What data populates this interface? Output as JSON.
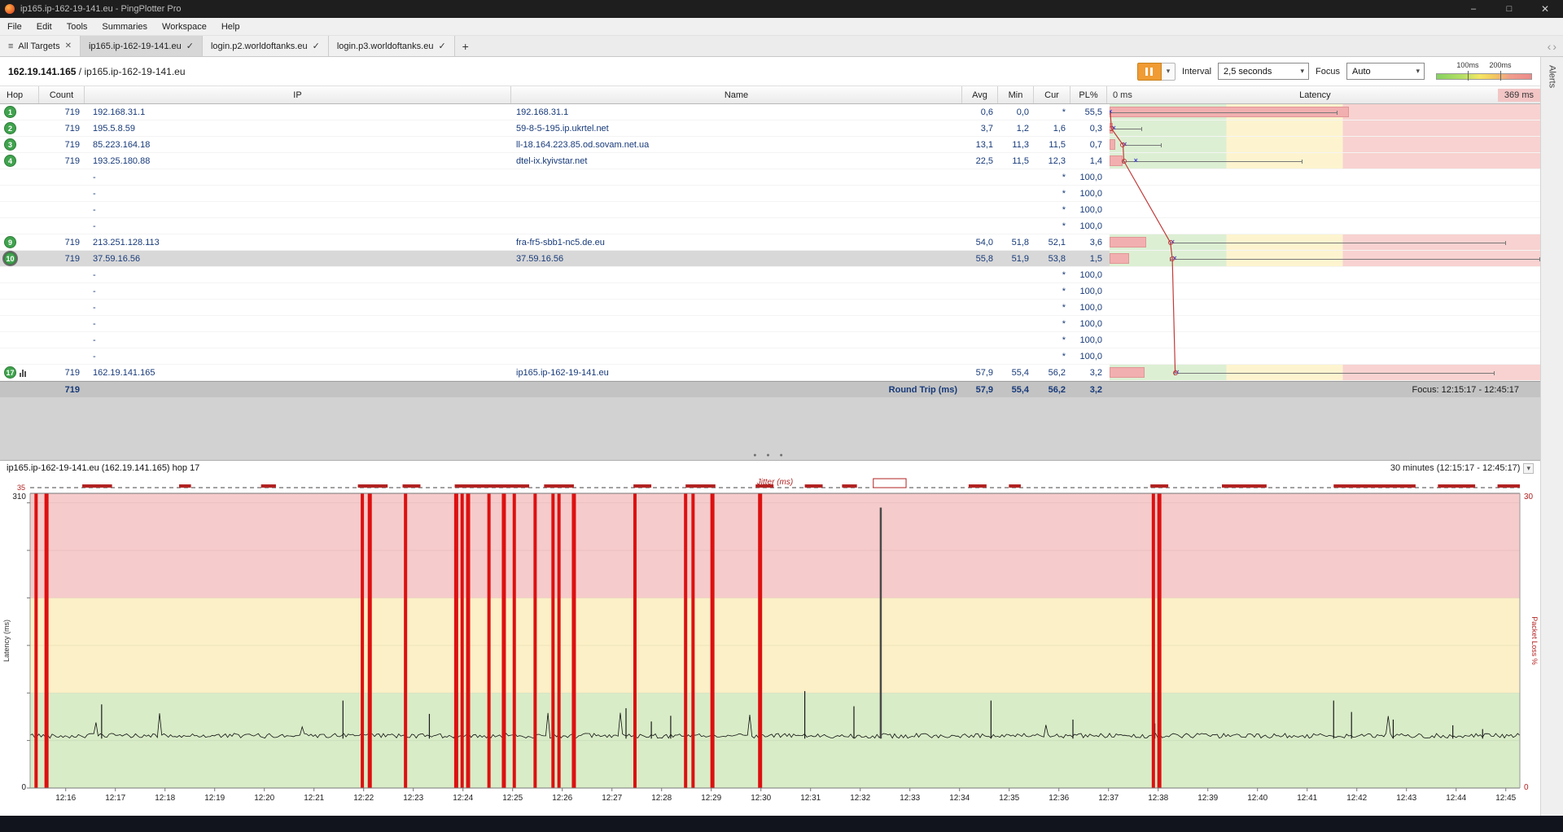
{
  "window": {
    "title": "ip165.ip-162-19-141.eu - PingPlotter Pro"
  },
  "icons": {
    "hamburger": "≡",
    "check": "✓",
    "close": "✕",
    "minimize": "–",
    "maximize": "□",
    "chevron_down": "▾",
    "chevron_left": "‹",
    "chevron_right": "›",
    "plus": "+",
    "dots": "● ● ●",
    "avg_marker": "×"
  },
  "colors": {
    "titlebar_bg": "#1e1e1e",
    "accent_orange": "#f09b33",
    "hop_badge_green": "#3fa34d",
    "text_navy": "#173a7a",
    "zone_green": "#dcefd3",
    "zone_yellow": "#fdf4cf",
    "zone_red": "#f8d2d0",
    "plot_green": "#d8ecc7",
    "plot_yellow": "#fbf0c7",
    "plot_red": "#f6cbcb",
    "packet_loss_red": "#dd1010",
    "hop_line_red": "#c23a3a",
    "avg_marker_blue": "#4646c8",
    "selected_row": "#d8d8d8",
    "footer_bg": "#c3c3c3",
    "taskbar": "#11131d"
  },
  "menu": {
    "items": [
      "File",
      "Edit",
      "Tools",
      "Summaries",
      "Workspace",
      "Help"
    ]
  },
  "tabs": {
    "items": [
      {
        "label": "All Targets",
        "icon": "menu",
        "close": true,
        "active": false
      },
      {
        "label": "ip165.ip-162-19-141.eu",
        "icon": "check",
        "close": false,
        "active": true
      },
      {
        "label": "login.p2.worldoftanks.eu",
        "icon": "check",
        "close": false,
        "active": false
      },
      {
        "label": "login.p3.worldoftanks.eu",
        "icon": "check",
        "close": false,
        "active": false
      }
    ]
  },
  "target_header": {
    "address": "162.19.141.165",
    "separator": " / ",
    "hostname": "ip165.ip-162-19-141.eu",
    "interval_label": "Interval",
    "interval_value": "2,5 seconds",
    "focus_label": "Focus",
    "focus_value": "Auto",
    "legend": {
      "low": "100ms",
      "high": "200ms"
    }
  },
  "sidebar": {
    "alerts_label": "Alerts"
  },
  "table": {
    "columns": [
      "Hop",
      "Count",
      "IP",
      "Name",
      "Avg",
      "Min",
      "Cur",
      "PL%"
    ],
    "latency_header": {
      "left": "0 ms",
      "title": "Latency",
      "right": "369 ms"
    },
    "scale_max_ms": 369,
    "zone_thresholds_ms": [
      100,
      200
    ],
    "rows": [
      {
        "hop": "1",
        "count": "719",
        "ip": "192.168.31.1",
        "name": "192.168.31.1",
        "avg": "0,6",
        "min": "0,0",
        "cur": "*",
        "pl": "55,5",
        "selected": false,
        "chart_icon": false,
        "g": {
          "min": 0,
          "avg": 0.6,
          "cur": null,
          "max": 195,
          "plw": 0.555
        }
      },
      {
        "hop": "2",
        "count": "719",
        "ip": "195.5.8.59",
        "name": "59-8-5-195.ip.ukrtel.net",
        "avg": "3,7",
        "min": "1,2",
        "cur": "1,6",
        "pl": "0,3",
        "selected": false,
        "chart_icon": false,
        "g": {
          "min": 1.2,
          "avg": 3.7,
          "cur": 1.6,
          "max": 28,
          "plw": 0.008
        }
      },
      {
        "hop": "3",
        "count": "719",
        "ip": "85.223.164.18",
        "name": "ll-18.164.223.85.od.sovam.net.ua",
        "avg": "13,1",
        "min": "11,3",
        "cur": "11,5",
        "pl": "0,7",
        "selected": false,
        "chart_icon": false,
        "g": {
          "min": 11.3,
          "avg": 13.1,
          "cur": 11.5,
          "max": 45,
          "plw": 0.014
        }
      },
      {
        "hop": "4",
        "count": "719",
        "ip": "193.25.180.88",
        "name": "dtel-ix.kyivstar.net",
        "avg": "22,5",
        "min": "11,5",
        "cur": "12,3",
        "pl": "1,4",
        "selected": false,
        "chart_icon": false,
        "g": {
          "min": 11.5,
          "avg": 22.5,
          "cur": 12.3,
          "max": 165,
          "plw": 0.03
        }
      },
      {
        "hop": "",
        "count": "",
        "ip": "-",
        "name": "",
        "avg": "",
        "min": "",
        "cur": "*",
        "pl": "100,0",
        "selected": false,
        "chart_icon": false,
        "g": null
      },
      {
        "hop": "",
        "count": "",
        "ip": "-",
        "name": "",
        "avg": "",
        "min": "",
        "cur": "*",
        "pl": "100,0",
        "selected": false,
        "chart_icon": false,
        "g": null
      },
      {
        "hop": "",
        "count": "",
        "ip": "-",
        "name": "",
        "avg": "",
        "min": "",
        "cur": "*",
        "pl": "100,0",
        "selected": false,
        "chart_icon": false,
        "g": null
      },
      {
        "hop": "",
        "count": "",
        "ip": "-",
        "name": "",
        "avg": "",
        "min": "",
        "cur": "*",
        "pl": "100,0",
        "selected": false,
        "chart_icon": false,
        "g": null
      },
      {
        "hop": "9",
        "count": "719",
        "ip": "213.251.128.113",
        "name": "fra-fr5-sbb1-nc5.de.eu",
        "avg": "54,0",
        "min": "51,8",
        "cur": "52,1",
        "pl": "3,6",
        "selected": false,
        "chart_icon": false,
        "g": {
          "min": 51.8,
          "avg": 54.0,
          "cur": 52.1,
          "max": 340,
          "plw": 0.085
        }
      },
      {
        "hop": "10",
        "count": "719",
        "ip": "37.59.16.56",
        "name": "37.59.16.56",
        "avg": "55,8",
        "min": "51,9",
        "cur": "53,8",
        "pl": "1,5",
        "selected": true,
        "chart_icon": false,
        "g": {
          "min": 51.9,
          "avg": 55.8,
          "cur": 53.8,
          "max": 369,
          "plw": 0.045
        }
      },
      {
        "hop": "",
        "count": "",
        "ip": "-",
        "name": "",
        "avg": "",
        "min": "",
        "cur": "*",
        "pl": "100,0",
        "selected": false,
        "chart_icon": false,
        "g": null
      },
      {
        "hop": "",
        "count": "",
        "ip": "-",
        "name": "",
        "avg": "",
        "min": "",
        "cur": "*",
        "pl": "100,0",
        "selected": false,
        "chart_icon": false,
        "g": null
      },
      {
        "hop": "",
        "count": "",
        "ip": "-",
        "name": "",
        "avg": "",
        "min": "",
        "cur": "*",
        "pl": "100,0",
        "selected": false,
        "chart_icon": false,
        "g": null
      },
      {
        "hop": "",
        "count": "",
        "ip": "-",
        "name": "",
        "avg": "",
        "min": "",
        "cur": "*",
        "pl": "100,0",
        "selected": false,
        "chart_icon": false,
        "g": null
      },
      {
        "hop": "",
        "count": "",
        "ip": "-",
        "name": "",
        "avg": "",
        "min": "",
        "cur": "*",
        "pl": "100,0",
        "selected": false,
        "chart_icon": false,
        "g": null
      },
      {
        "hop": "",
        "count": "",
        "ip": "-",
        "name": "",
        "avg": "",
        "min": "",
        "cur": "*",
        "pl": "100,0",
        "selected": false,
        "chart_icon": false,
        "g": null
      },
      {
        "hop": "17",
        "count": "719",
        "ip": "162.19.141.165",
        "name": "ip165.ip-162-19-141.eu",
        "avg": "57,9",
        "min": "55,4",
        "cur": "56,2",
        "pl": "3,2",
        "selected": false,
        "chart_icon": true,
        "g": {
          "min": 55.4,
          "avg": 57.9,
          "cur": 56.2,
          "max": 330,
          "plw": 0.082
        }
      }
    ],
    "footer": {
      "count": "719",
      "label": "Round Trip (ms)",
      "avg": "57,9",
      "min": "55,4",
      "cur": "56,2",
      "pl": "3,2",
      "focus": "Focus: 12:15:17 - 12:45:17"
    }
  },
  "chart_data": {
    "type": "line",
    "title": "ip165.ip-162-19-141.eu (162.19.141.165) hop 17",
    "time_range_label": "30 minutes (12:15:17 - 12:45:17)",
    "x_start": "12:15:17",
    "x_end": "12:45:17",
    "x_tick_labels": [
      "12:16",
      "12:17",
      "12:18",
      "12:19",
      "12:20",
      "12:21",
      "12:22",
      "12:23",
      "12:24",
      "12:25",
      "12:26",
      "12:27",
      "12:28",
      "12:29",
      "12:30",
      "12:31",
      "12:32",
      "12:33",
      "12:34",
      "12:35",
      "12:36",
      "12:37",
      "12:38",
      "12:39",
      "12:40",
      "12:41",
      "12:42",
      "12:43",
      "12:44",
      "12:45"
    ],
    "ylabel_left": "Latency (ms)",
    "ylabel_right": "Packet Loss %",
    "ylim_left": [
      0,
      310
    ],
    "ylim_right": [
      0,
      30
    ],
    "zones_ms": [
      100,
      200
    ],
    "baseline_ms": 55,
    "jitter": {
      "label": "Jitter (ms)",
      "axis_max": 35,
      "segments": [
        {
          "t": 0.035,
          "w": 0.02
        },
        {
          "t": 0.1,
          "w": 0.008
        },
        {
          "t": 0.155,
          "w": 0.01
        },
        {
          "t": 0.22,
          "w": 0.02
        },
        {
          "t": 0.25,
          "w": 0.012
        },
        {
          "t": 0.285,
          "w": 0.05
        },
        {
          "t": 0.345,
          "w": 0.02
        },
        {
          "t": 0.405,
          "w": 0.012
        },
        {
          "t": 0.44,
          "w": 0.02
        },
        {
          "t": 0.487,
          "w": 0.012
        },
        {
          "t": 0.52,
          "w": 0.012
        },
        {
          "t": 0.545,
          "w": 0.01
        },
        {
          "t": 0.566,
          "w": 0.022,
          "box": true
        },
        {
          "t": 0.63,
          "w": 0.012
        },
        {
          "t": 0.657,
          "w": 0.008
        },
        {
          "t": 0.752,
          "w": 0.012
        },
        {
          "t": 0.8,
          "w": 0.03
        },
        {
          "t": 0.875,
          "w": 0.055
        },
        {
          "t": 0.945,
          "w": 0.025
        },
        {
          "t": 0.985,
          "w": 0.015
        }
      ]
    },
    "packet_loss_events": [
      {
        "t": 0.004,
        "w": 4
      },
      {
        "t": 0.011,
        "w": 5
      },
      {
        "t": 0.223,
        "w": 4
      },
      {
        "t": 0.228,
        "w": 5
      },
      {
        "t": 0.252,
        "w": 4
      },
      {
        "t": 0.286,
        "w": 5
      },
      {
        "t": 0.29,
        "w": 4
      },
      {
        "t": 0.294,
        "w": 5
      },
      {
        "t": 0.308,
        "w": 4
      },
      {
        "t": 0.318,
        "w": 5
      },
      {
        "t": 0.325,
        "w": 4
      },
      {
        "t": 0.339,
        "w": 4
      },
      {
        "t": 0.351,
        "w": 4
      },
      {
        "t": 0.355,
        "w": 4
      },
      {
        "t": 0.365,
        "w": 5
      },
      {
        "t": 0.406,
        "w": 4
      },
      {
        "t": 0.44,
        "w": 4
      },
      {
        "t": 0.445,
        "w": 4
      },
      {
        "t": 0.458,
        "w": 5
      },
      {
        "t": 0.49,
        "w": 5
      },
      {
        "t": 0.754,
        "w": 4
      },
      {
        "t": 0.758,
        "w": 5
      }
    ],
    "latency_spikes": [
      {
        "t": 0.048,
        "ms": 88
      },
      {
        "t": 0.21,
        "ms": 92
      },
      {
        "t": 0.268,
        "ms": 78
      },
      {
        "t": 0.4,
        "ms": 84
      },
      {
        "t": 0.417,
        "ms": 70
      },
      {
        "t": 0.43,
        "ms": 76
      },
      {
        "t": 0.52,
        "ms": 102
      },
      {
        "t": 0.553,
        "ms": 86
      },
      {
        "t": 0.571,
        "ms": 295
      },
      {
        "t": 0.645,
        "ms": 92
      },
      {
        "t": 0.7,
        "ms": 72
      },
      {
        "t": 0.755,
        "ms": 68
      },
      {
        "t": 0.875,
        "ms": 92
      },
      {
        "t": 0.887,
        "ms": 80
      },
      {
        "t": 0.915,
        "ms": 72
      },
      {
        "t": 0.955,
        "ms": 66
      },
      {
        "t": 0.975,
        "ms": 62
      }
    ]
  }
}
